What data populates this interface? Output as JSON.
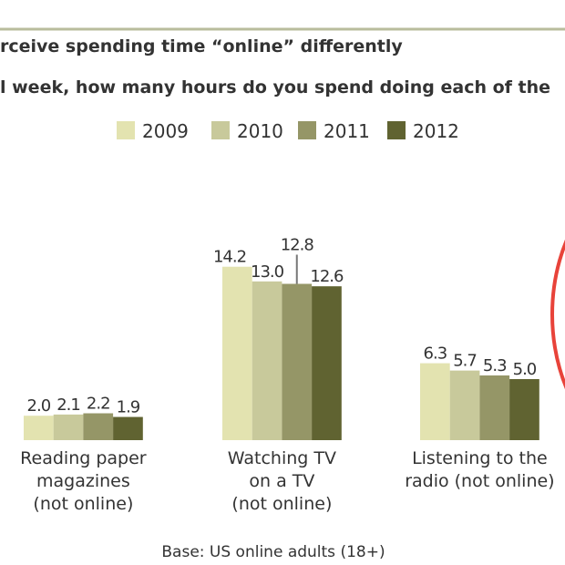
{
  "chart_data": {
    "type": "bar",
    "title": "rceive spending time “online” differently",
    "subtitle": "l week, how many hours do you spend doing each of the",
    "categories": [
      [
        "Reading paper",
        "magazines",
        "(not online)"
      ],
      [
        "Watching TV",
        "on a TV",
        "(not online)"
      ],
      [
        "Listening to the",
        "radio (not online)"
      ]
    ],
    "series": [
      {
        "name": "2009",
        "color": "#e3e3b0",
        "values": [
          2.0,
          14.2,
          6.3
        ]
      },
      {
        "name": "2010",
        "color": "#c8c99b",
        "values": [
          2.1,
          13.0,
          5.7
        ]
      },
      {
        "name": "2011",
        "color": "#959667",
        "values": [
          2.2,
          12.8,
          5.3
        ]
      },
      {
        "name": "2012",
        "color": "#606331",
        "values": [
          1.9,
          12.6,
          5.0
        ]
      }
    ],
    "value_labels": [
      [
        "2.0",
        "2.1",
        "2.2",
        "1.9"
      ],
      [
        "14.2",
        "13.0",
        "12.8",
        "12.6"
      ],
      [
        "6.3",
        "5.7",
        "5.3",
        "5.0"
      ]
    ],
    "legend_position": "top",
    "grid": false,
    "xlabel": "",
    "ylabel": "",
    "footnote": "Base: US online adults (18+)",
    "annotation_color": "#e8433a",
    "rule_color": "#b9bc9c"
  }
}
